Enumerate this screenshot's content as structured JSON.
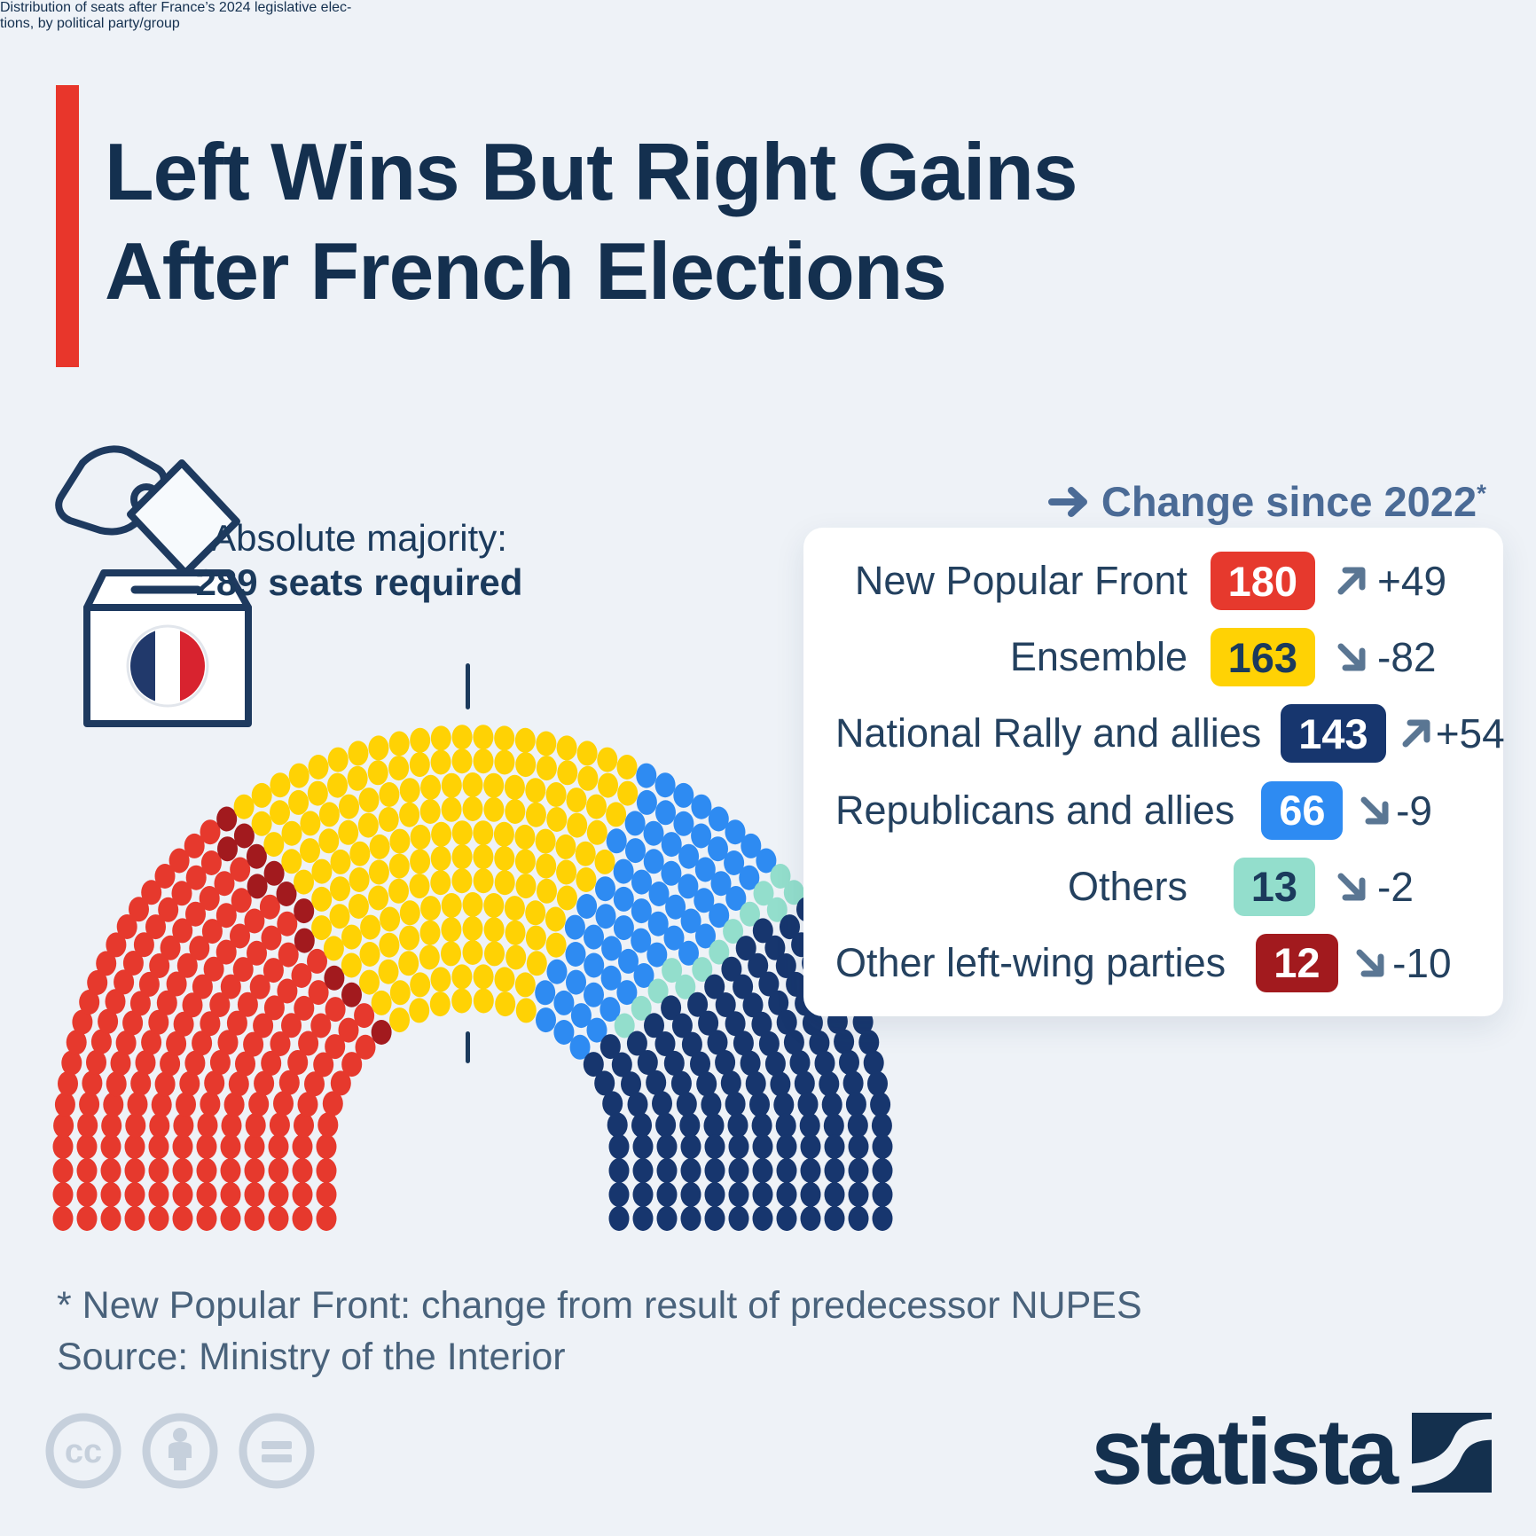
{
  "title": {
    "line1": "Left Wins But Right Gains",
    "line2": "After French Elections"
  },
  "subtitle": {
    "line1": "Distribution of seats after France’s 2024 legislative elec-",
    "line2": "tions, by political party/group"
  },
  "majority": {
    "line1": "Absolute majority:",
    "line2": "289 seats required"
  },
  "legend": {
    "header": "Change since 2022",
    "header_asterisk": "*"
  },
  "parties": [
    {
      "name": "New Popular Front",
      "seats": "180",
      "change": "+49",
      "direction": "up",
      "color": "#E6392D",
      "text_color": "#FFFFFF"
    },
    {
      "name": "Ensemble",
      "seats": "163",
      "change": "-82",
      "direction": "down",
      "color": "#FFD204",
      "text_color": "#1B3A5C"
    },
    {
      "name": "National Rally and allies",
      "seats": "143",
      "change": "+54",
      "direction": "up",
      "color": "#17366E",
      "text_color": "#FFFFFF"
    },
    {
      "name": "Republicans and allies",
      "seats": "66",
      "change": "-9",
      "direction": "down",
      "color": "#2E8BF2",
      "text_color": "#FFFFFF"
    },
    {
      "name": "Others",
      "seats": "13",
      "change": "-2",
      "direction": "down",
      "color": "#93DECC",
      "text_color": "#1B3A5C"
    },
    {
      "name": "Other left-wing parties",
      "seats": "12",
      "change": "-10",
      "direction": "down",
      "color": "#A21A1E",
      "text_color": "#FFFFFF"
    }
  ],
  "hemicycle": {
    "order": [
      "New Popular Front",
      "Other left-wing parties",
      "Ensemble",
      "Republicans and allies",
      "Others",
      "National Rally and allies"
    ],
    "total_seats": 577,
    "majority_seats": 289
  },
  "footnote": "* New Popular Front: change from result of predecessor NUPES",
  "source": "Source: Ministry of the Interior",
  "branding": {
    "logo_text": "statista"
  },
  "colors": {
    "background": "#EEF2F7",
    "accent_red": "#E8362B",
    "title_navy": "#14304F",
    "subtitle_slate": "#5A6B82",
    "legend_header_blue": "#4B6B96",
    "change_arrow_slate": "#5A7693",
    "footer_slate": "#49627B",
    "cc_grey": "#C6D0DC"
  },
  "chart_data": {
    "type": "parliament",
    "title": "Distribution of seats after France's 2024 legislative elections, by political party/group",
    "total_seats": 577,
    "majority_threshold": 289,
    "categories": [
      "New Popular Front",
      "Ensemble",
      "National Rally and allies",
      "Republicans and allies",
      "Others",
      "Other left-wing parties"
    ],
    "values": [
      180,
      163,
      143,
      66,
      13,
      12
    ],
    "change_since_2022": [
      49,
      -82,
      54,
      -9,
      -2,
      -10
    ],
    "colors": [
      "#E6392D",
      "#FFD204",
      "#17366E",
      "#2E8BF2",
      "#93DECC",
      "#A21A1E"
    ],
    "seating_order_left_to_right": [
      "New Popular Front",
      "Other left-wing parties",
      "Ensemble",
      "Republicans and allies",
      "Others",
      "National Rally and allies"
    ],
    "legend_position": "right",
    "footnote": "* New Popular Front: change from result of predecessor NUPES",
    "source": "Ministry of the Interior"
  }
}
